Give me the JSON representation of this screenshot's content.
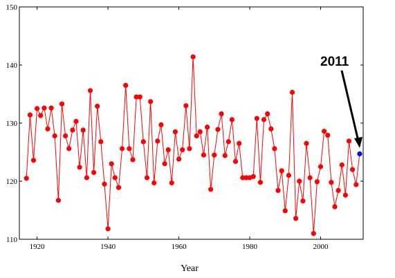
{
  "colors": {
    "series": "#ff0000",
    "highlight": "#0000ff",
    "axis": "#000000",
    "background": "#ffffff"
  },
  "annotation": {
    "label": "2011",
    "arrow_target_year": 2011
  },
  "chart_data": {
    "type": "line",
    "title": "",
    "xlabel": "Year",
    "ylabel": "",
    "xlim": [
      1915,
      2012
    ],
    "ylim": [
      110,
      150
    ],
    "xticks": [
      1920,
      1940,
      1960,
      1980,
      2000
    ],
    "yticks": [
      110,
      120,
      130,
      140,
      150
    ],
    "grid": false,
    "x": [
      1917,
      1918,
      1919,
      1920,
      1921,
      1922,
      1923,
      1924,
      1925,
      1926,
      1927,
      1928,
      1929,
      1930,
      1931,
      1932,
      1933,
      1934,
      1935,
      1936,
      1937,
      1938,
      1939,
      1940,
      1941,
      1942,
      1943,
      1944,
      1945,
      1946,
      1947,
      1948,
      1949,
      1950,
      1951,
      1952,
      1953,
      1954,
      1955,
      1956,
      1957,
      1958,
      1959,
      1960,
      1961,
      1962,
      1963,
      1964,
      1965,
      1966,
      1967,
      1968,
      1969,
      1970,
      1971,
      1972,
      1973,
      1974,
      1975,
      1976,
      1977,
      1978,
      1979,
      1980,
      1981,
      1982,
      1983,
      1984,
      1985,
      1986,
      1987,
      1988,
      1989,
      1990,
      1991,
      1992,
      1993,
      1994,
      1995,
      1996,
      1997,
      1998,
      1999,
      2000,
      2001,
      2002,
      2003,
      2004,
      2005,
      2006,
      2007,
      2008,
      2009,
      2010,
      2011
    ],
    "series": [
      {
        "values": [
          120.5,
          131.4,
          123.6,
          132.5,
          131.3,
          132.6,
          129.0,
          132.6,
          127.8,
          116.7,
          133.3,
          127.8,
          125.6,
          128.8,
          130.3,
          122.4,
          128.8,
          120.6,
          135.6,
          121.5,
          132.9,
          126.8,
          119.5,
          111.8,
          123.0,
          120.6,
          118.9,
          125.6,
          136.5,
          125.6,
          123.7,
          134.5,
          134.5,
          126.8,
          120.6,
          133.7,
          119.7,
          126.9,
          129.7,
          123.0,
          125.4,
          119.7,
          128.5,
          123.8,
          125.4,
          133.0,
          125.6,
          141.4,
          127.8,
          128.5,
          124.5,
          129.3,
          118.6,
          124.5,
          128.9,
          131.6,
          124.4,
          126.8,
          130.6,
          123.4,
          126.5,
          120.6,
          120.6,
          120.6,
          120.8,
          130.8,
          119.8,
          130.6,
          131.6,
          129.0,
          125.6,
          118.4,
          121.8,
          114.9,
          121.0,
          135.3,
          113.6,
          120.0,
          116.6,
          126.5,
          120.6,
          111.0,
          119.9,
          122.5,
          128.6,
          127.9,
          119.8,
          115.6,
          118.4,
          122.8,
          117.6,
          126.9,
          122.0,
          119.4,
          124.7
        ]
      }
    ]
  }
}
